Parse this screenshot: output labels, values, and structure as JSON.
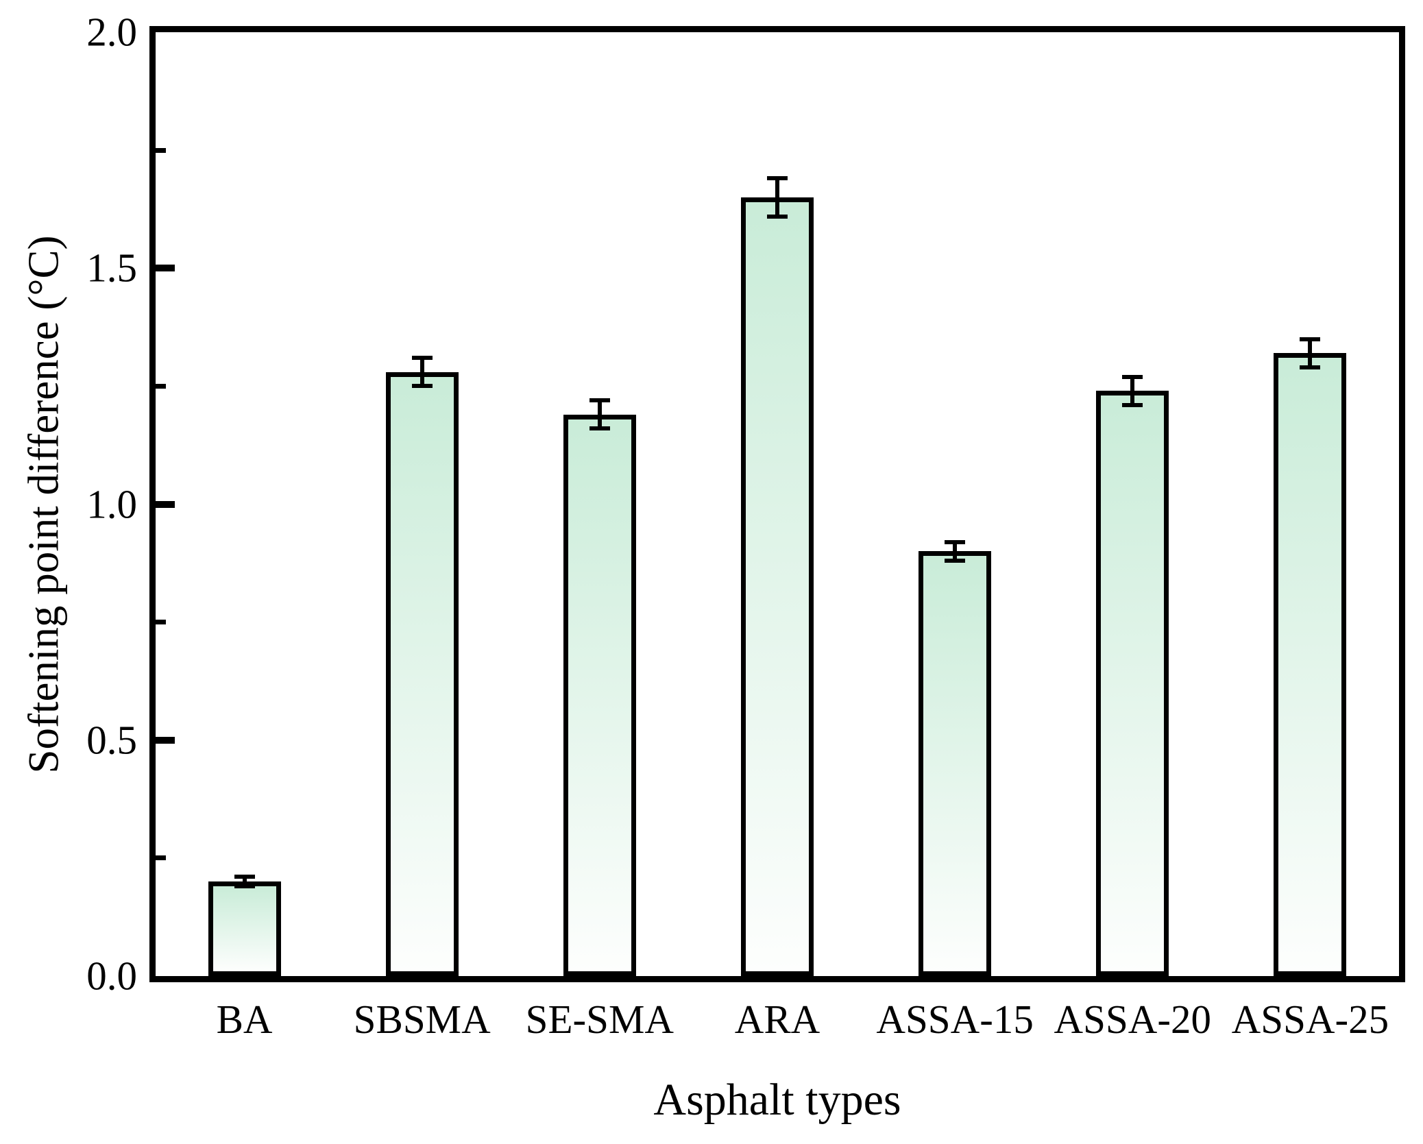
{
  "chart_data": {
    "type": "bar",
    "title": "",
    "xlabel": "Asphalt types",
    "ylabel": "Softening point difference (°C)",
    "categories": [
      "BA",
      "SBSMA",
      "SE-SMA",
      "ARA",
      "ASSA-15",
      "ASSA-20",
      "ASSA-25"
    ],
    "values": [
      0.2,
      1.28,
      1.19,
      1.65,
      0.9,
      1.24,
      1.32
    ],
    "errors": [
      0.01,
      0.03,
      0.03,
      0.04,
      0.02,
      0.03,
      0.03
    ],
    "ylim": [
      0.0,
      2.0
    ],
    "ytick_major": 0.5,
    "ytick_minor": 0.25,
    "ytick_label_format_decimals": 1,
    "grid": "off",
    "legend": "none",
    "bar_fill_top": "#c9ecd8",
    "bar_fill_bottom": "#fdfefd",
    "bar_border_color": "#000000",
    "axis_color": "#000000",
    "background_color": "#ffffff"
  }
}
